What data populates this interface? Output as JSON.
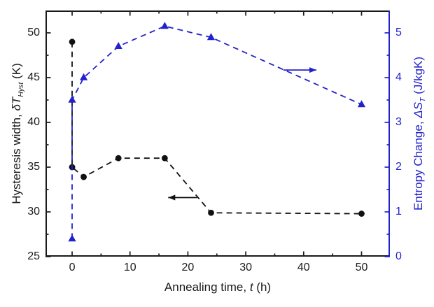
{
  "chart_data": {
    "type": "line",
    "title": "",
    "x_axis": {
      "label_pre": "Annealing time, ",
      "label_var": "t",
      "label_post": " (h)",
      "range": [
        -4.6,
        54.9
      ],
      "major_ticks": [
        0,
        10,
        20,
        30,
        40,
        50
      ],
      "minor_ticks": [
        5,
        15,
        25,
        35,
        45
      ],
      "color": "#1a1a1a"
    },
    "left_axis": {
      "label_pre": "Hysteresis width, ",
      "label_var": "δT",
      "label_sub": "Hyst",
      "label_post": " (K)",
      "range": [
        25,
        52.5
      ],
      "major_ticks": [
        25,
        30,
        35,
        40,
        45,
        50
      ],
      "minor_ticks": [
        27.5,
        32.5,
        37.5,
        42.5,
        47.5
      ],
      "color": "#1a1a1a"
    },
    "right_axis": {
      "label_pre": "Entropy Change, ",
      "label_var": "ΔS",
      "label_sub": "T",
      "label_post": " (J/kgK)",
      "range": [
        0,
        5.5
      ],
      "major_ticks": [
        0,
        1,
        2,
        3,
        4,
        5
      ],
      "minor_ticks": [
        0.5,
        1.5,
        2.5,
        3.5,
        4.5
      ],
      "color": "#2222cc"
    },
    "grid": false,
    "legend": "none",
    "series": [
      {
        "name": "hysteresis-width",
        "axis": "left",
        "marker": "circle",
        "line": "dashed",
        "color": "#111111",
        "points": [
          [
            0,
            49
          ],
          [
            0,
            35
          ],
          [
            2,
            33.9
          ],
          [
            8,
            36
          ],
          [
            16,
            36
          ],
          [
            24,
            29.9
          ],
          [
            50,
            29.8
          ]
        ]
      },
      {
        "name": "entropy-change",
        "axis": "right",
        "marker": "triangle",
        "line": "dashed",
        "color": "#2222cc",
        "points": [
          [
            0,
            0.4
          ],
          [
            0,
            3.5
          ],
          [
            2,
            4.0
          ],
          [
            8,
            4.7
          ],
          [
            16,
            5.15
          ],
          [
            24,
            4.9
          ],
          [
            50,
            3.4
          ]
        ]
      }
    ],
    "annotations": [
      {
        "type": "arrow",
        "axis": "left",
        "from": [
          21.6,
          31.6
        ],
        "to": [
          16.6,
          31.6
        ],
        "color": "#111111"
      },
      {
        "type": "arrow",
        "axis": "right",
        "from": [
          36.5,
          4.17
        ],
        "to": [
          42.2,
          4.17
        ],
        "color": "#2222cc"
      }
    ]
  }
}
